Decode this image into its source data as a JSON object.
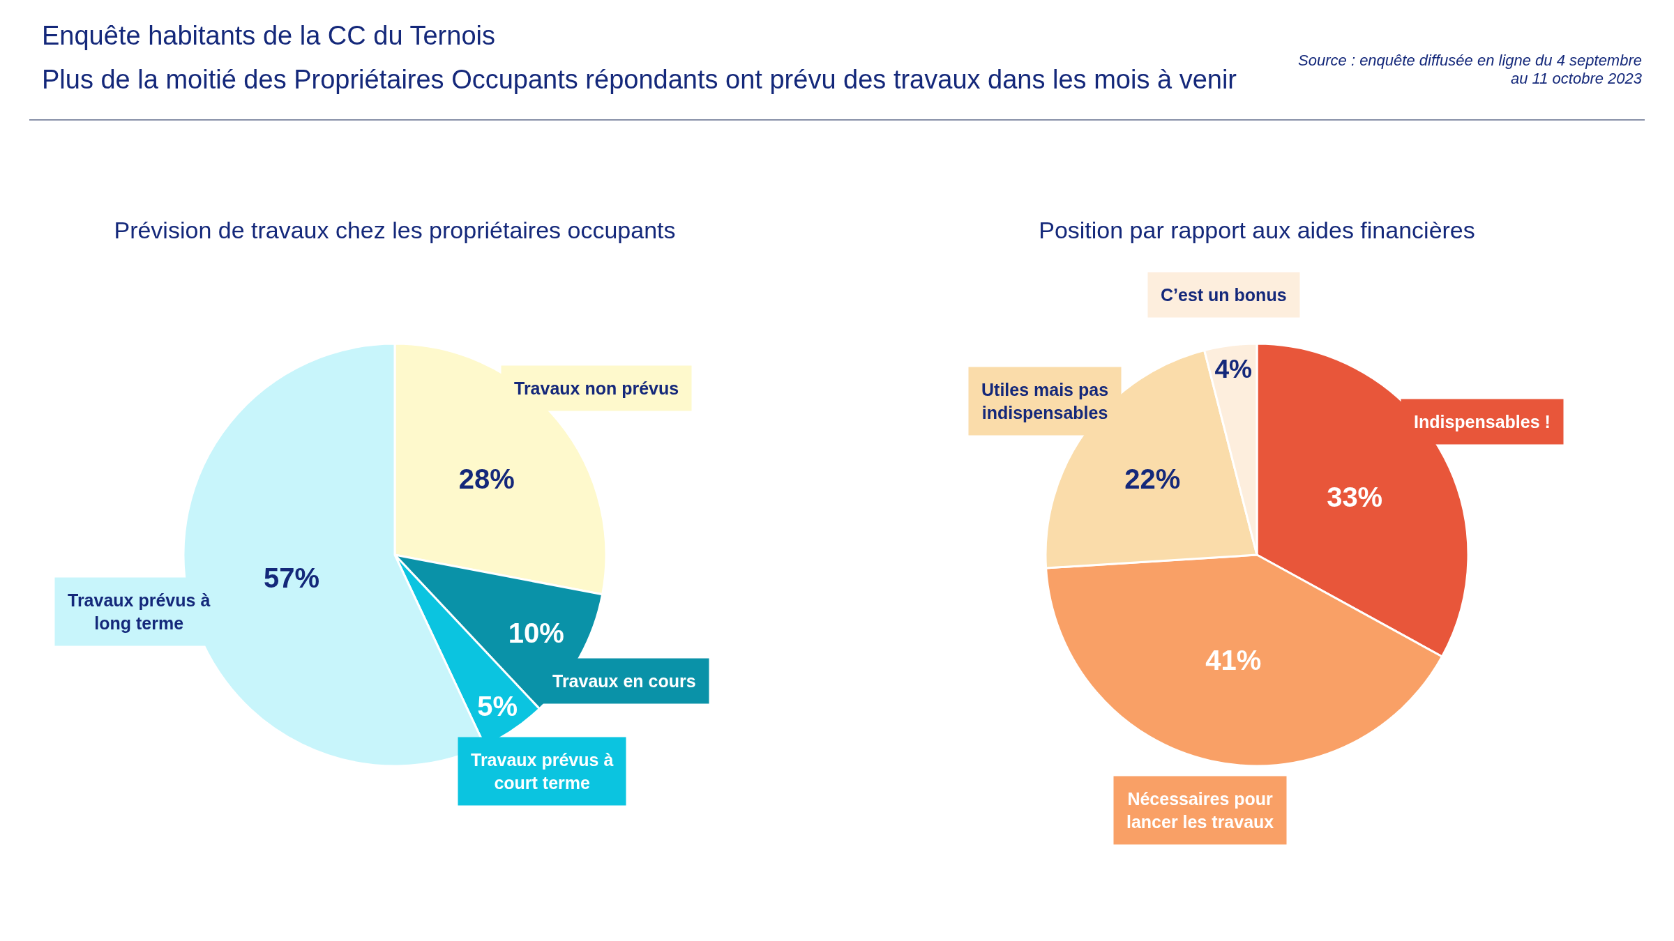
{
  "chart_data": [
    {
      "type": "pie",
      "title": "Prévision de travaux chez les propriétaires occupants",
      "annotations": [
        "Enquête habitants de la CC du Ternois",
        "Plus de la moitié des Propriétaires Occupants répondants ont prévu des travaux dans les mois à venir",
        "Source : enquête diffusée en ligne du 4 septembre au 11 octobre 2023"
      ],
      "categories": [
        "Travaux non prévus",
        "Travaux en cours",
        "Travaux prévus à court terme",
        "Travaux prévus à long terme"
      ],
      "values": [
        28,
        10,
        5,
        57
      ],
      "value_labels": [
        "28%",
        "10%",
        "5%",
        "57%"
      ],
      "colors": [
        "#fef9cc",
        "#0a92a8",
        "#0bc4e0",
        "#c8f5fb"
      ],
      "legend": false
    },
    {
      "type": "pie",
      "title": "Position par rapport aux aides financières",
      "categories": [
        "Indispensables !",
        "Nécessaires pour lancer les travaux",
        "Utiles mais pas indispensables",
        "C’est un bonus"
      ],
      "values": [
        33,
        41,
        22,
        4
      ],
      "value_labels": [
        "33%",
        "41%",
        "22%",
        "4%"
      ],
      "colors": [
        "#e8563a",
        "#f9a066",
        "#fadcaa",
        "#fdeedd"
      ],
      "legend": false
    }
  ]
}
